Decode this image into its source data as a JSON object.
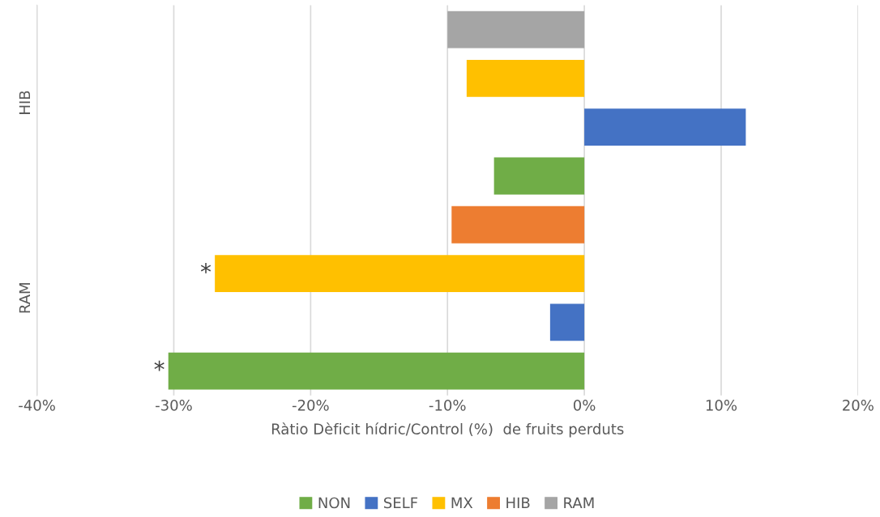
{
  "chart_data": {
    "type": "bar",
    "orientation": "horizontal",
    "xlabel": "Ràtio Dèficit hídric/Control (%)  de fruits perduts",
    "categories": [
      "HIB",
      "RAM"
    ],
    "series": [
      {
        "name": "NON",
        "color": "#70ad47",
        "values": [
          -6.6,
          -30.4
        ],
        "value_labels": [
          null,
          "*"
        ]
      },
      {
        "name": "SELF",
        "color": "#4472c4",
        "values": [
          11.8,
          -2.5
        ]
      },
      {
        "name": "MX",
        "color": "#ffc000",
        "values": [
          -8.6,
          -27.0
        ],
        "value_labels": [
          null,
          "*"
        ]
      },
      {
        "name": "HIB",
        "color": "#ed7d31",
        "values": [
          null,
          -9.7
        ]
      },
      {
        "name": "RAM",
        "color": "#a5a5a5",
        "values": [
          -10.0,
          null
        ]
      }
    ],
    "xlim": [
      -40,
      20
    ],
    "xticks": [
      {
        "value": -40,
        "label": "-40%"
      },
      {
        "value": -30,
        "label": "-30%"
      },
      {
        "value": -20,
        "label": "-20%"
      },
      {
        "value": -10,
        "label": "-10%"
      },
      {
        "value": 0,
        "label": "0%"
      },
      {
        "value": 10,
        "label": "10%"
      },
      {
        "value": 20,
        "label": "20%"
      }
    ],
    "grid": "x",
    "legend": "bottom"
  }
}
